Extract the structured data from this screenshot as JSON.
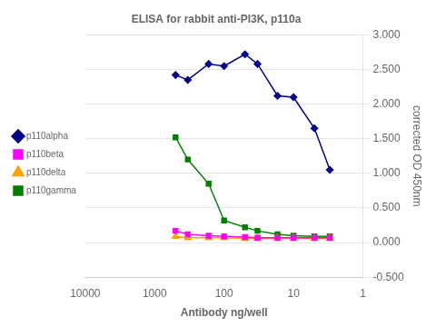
{
  "chart_data": {
    "type": "line",
    "title": "ELISA for rabbit anti-PI3K, p110a",
    "x_label": "Antibody ng/well",
    "y_label": "corrected OD 450nm",
    "x": [
      500,
      333,
      167,
      100,
      50,
      33,
      17,
      10,
      5,
      3
    ],
    "series": [
      {
        "name": "p110alpha",
        "color": "#00008B",
        "marker": "diamond",
        "values": [
          2.42,
          2.35,
          2.58,
          2.55,
          2.72,
          2.58,
          2.12,
          2.1,
          1.65,
          1.05
        ]
      },
      {
        "name": "p110beta",
        "color": "#FF00FF",
        "marker": "square",
        "values": [
          0.17,
          0.12,
          0.1,
          0.09,
          0.08,
          0.07,
          0.07,
          0.07,
          0.07,
          0.07
        ]
      },
      {
        "name": "p110delta",
        "color": "#FFA500",
        "marker": "triangle",
        "values": [
          0.09,
          0.07,
          0.07,
          0.07,
          0.06,
          0.06,
          0.06,
          0.06,
          0.06,
          0.06
        ]
      },
      {
        "name": "p110gamma",
        "color": "#008000",
        "marker": "square",
        "values": [
          1.52,
          1.2,
          0.85,
          0.32,
          0.22,
          0.17,
          0.12,
          0.1,
          0.09,
          0.09
        ]
      }
    ],
    "log": "x",
    "xlim": [
      10000,
      1
    ],
    "xticks": [
      10000,
      1000,
      100,
      10,
      1
    ],
    "ylim": [
      -0.5,
      3.0
    ],
    "yticks": [
      {
        "value": -0.5,
        "label": "-0.500"
      },
      {
        "value": 0.0,
        "label": "0.000"
      },
      {
        "value": 0.5,
        "label": "0.500"
      },
      {
        "value": 1.0,
        "label": "1.000"
      },
      {
        "value": 1.5,
        "label": "1.500"
      },
      {
        "value": 2.0,
        "label": "2.000"
      },
      {
        "value": 2.5,
        "label": "2.500"
      },
      {
        "value": 3.0,
        "label": "3.000"
      }
    ],
    "grid": "y",
    "legend": "left"
  }
}
